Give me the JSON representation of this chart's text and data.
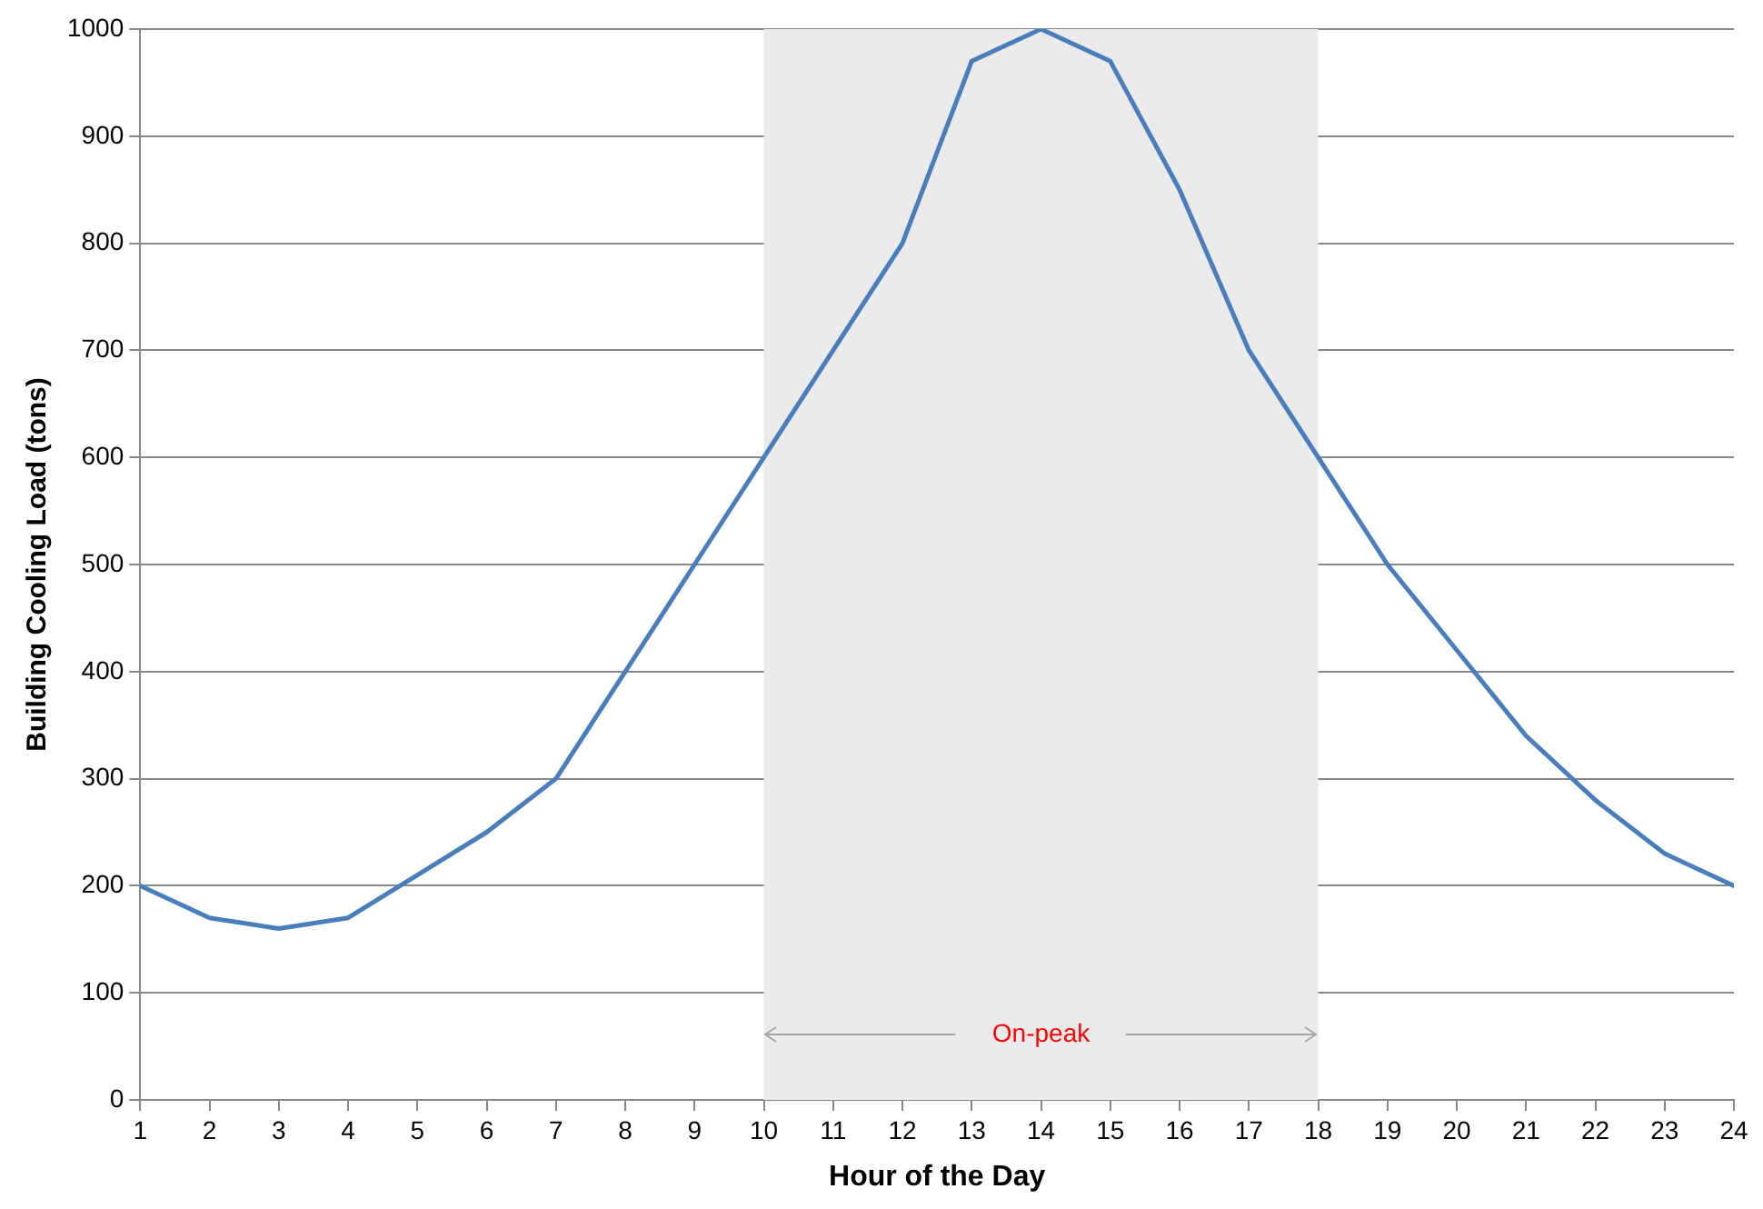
{
  "chart_data": {
    "type": "line",
    "xlabel": "Hour of the Day",
    "ylabel": "Building Cooling Load (tons)",
    "x": [
      1,
      2,
      3,
      4,
      5,
      6,
      7,
      8,
      9,
      10,
      11,
      12,
      13,
      14,
      15,
      16,
      17,
      18,
      19,
      20,
      21,
      22,
      23,
      24
    ],
    "series": [
      {
        "color": "#4a7ebb",
        "values": [
          200,
          170,
          160,
          170,
          210,
          250,
          300,
          400,
          500,
          600,
          700,
          800,
          970,
          1000,
          970,
          850,
          700,
          600,
          500,
          420,
          340,
          280,
          230,
          200
        ]
      }
    ],
    "xlim": [
      1,
      24
    ],
    "xticks": [
      1,
      2,
      3,
      4,
      5,
      6,
      7,
      8,
      9,
      10,
      11,
      12,
      13,
      14,
      15,
      16,
      17,
      18,
      19,
      20,
      21,
      22,
      23,
      24
    ],
    "ylim": [
      0,
      1000
    ],
    "yticks": [
      0,
      100,
      200,
      300,
      400,
      500,
      600,
      700,
      800,
      900,
      1000
    ],
    "bands": [
      {
        "axis": "x",
        "from": 10,
        "to": 18,
        "label": "On-peak",
        "color": "#ebebeb"
      }
    ],
    "grid": "y",
    "legend": false,
    "marker": "none",
    "line_style": "solid"
  }
}
